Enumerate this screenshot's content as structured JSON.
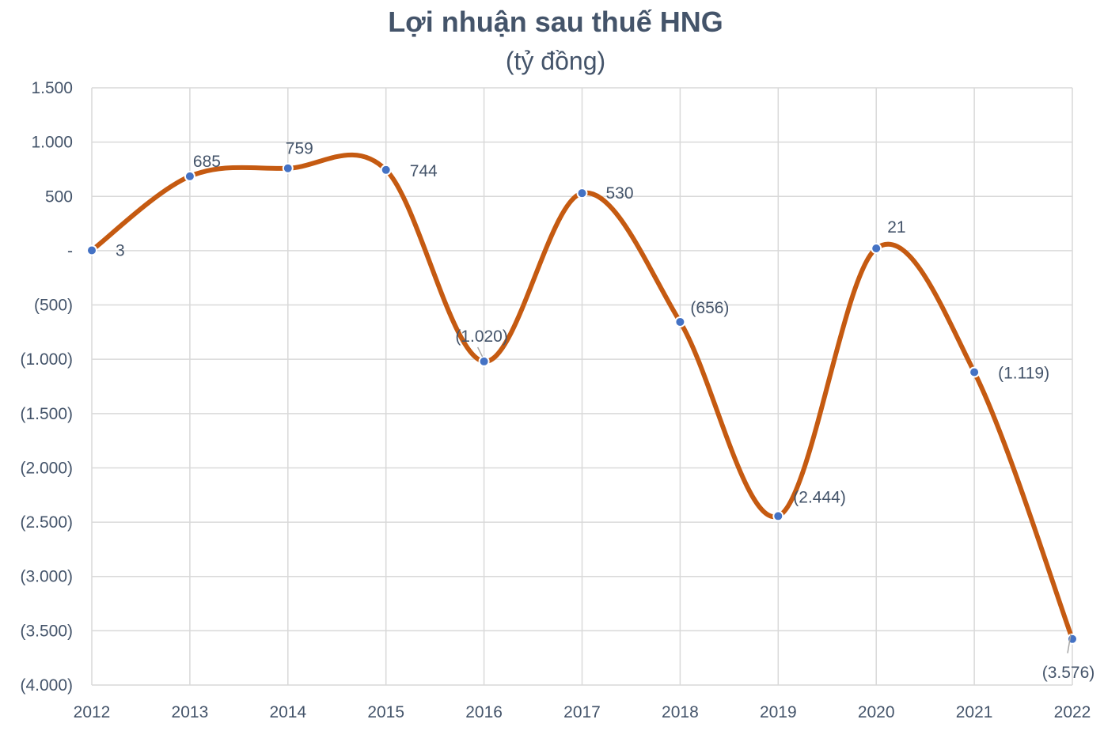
{
  "chart_data": {
    "type": "line",
    "title": "Lợi nhuận sau thuế HNG",
    "subtitle": "(tỷ đồng)",
    "xlabel": "",
    "ylabel": "",
    "categories": [
      "2012",
      "2013",
      "2014",
      "2015",
      "2016",
      "2017",
      "2018",
      "2019",
      "2020",
      "2021",
      "2022"
    ],
    "series": [
      {
        "name": "Lợi nhuận sau thuế",
        "values": [
          3,
          685,
          759,
          744,
          -1020,
          530,
          -656,
          -2444,
          21,
          -1119,
          -3576
        ]
      }
    ],
    "data_labels": [
      "3",
      "685",
      "759",
      "744",
      "(1.020)",
      "530",
      "(656)",
      "(2.444)",
      "21",
      "(1.119)",
      "(3.576)"
    ],
    "ylim": [
      -4000,
      1500
    ],
    "yticks": [
      1500,
      1000,
      500,
      0,
      -500,
      -1000,
      -1500,
      -2000,
      -2500,
      -3000,
      -3500,
      -4000
    ],
    "ytick_labels": [
      "1.500",
      "1.000",
      "500",
      "-",
      "(500)",
      "(1.000)",
      "(1.500)",
      "(2.000)",
      "(2.500)",
      "(3.000)",
      "(3.500)",
      "(4.000)"
    ],
    "grid": true,
    "smooth": true,
    "legend": "none",
    "colors": {
      "line": "#C55A11",
      "marker": "#4472C4",
      "text": "#44546A",
      "grid": "#D9D9D9"
    }
  }
}
